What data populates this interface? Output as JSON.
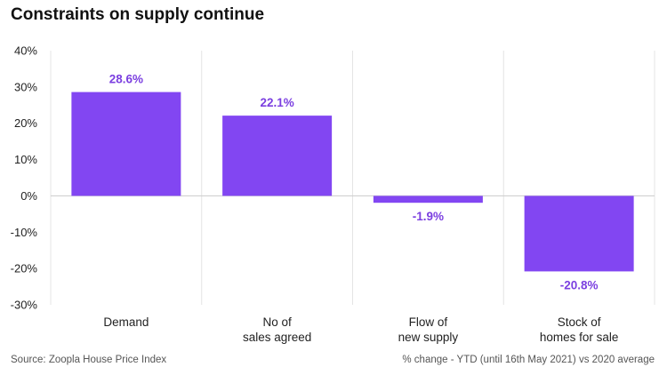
{
  "title": "Constraints on supply continue",
  "source": "Source: Zoopla House Price Index",
  "note": "% change - YTD (until 16th May 2021) vs 2020 average",
  "colors": {
    "bar": "#8246f2",
    "label": "#7b3fe0",
    "grid": "#e4e4e4",
    "zero": "#cccccc"
  },
  "chart_data": {
    "type": "bar",
    "title": "Constraints on supply continue",
    "categories": [
      [
        "Demand"
      ],
      [
        "No of",
        "sales agreed"
      ],
      [
        "Flow of",
        "new supply"
      ],
      [
        "Stock of",
        "homes for sale"
      ]
    ],
    "values": [
      28.6,
      22.1,
      -1.9,
      -20.8
    ],
    "data_labels": [
      "28.6%",
      "22.1%",
      "-1.9%",
      "-20.8%"
    ],
    "yticks": [
      40,
      30,
      20,
      10,
      0,
      -10,
      -20,
      -30
    ],
    "ytick_labels": [
      "40%",
      "30%",
      "20%",
      "10%",
      "0%",
      "-10%",
      "-20%",
      "-30%"
    ],
    "ylim": [
      -30,
      40
    ],
    "grid": false,
    "legend": "none"
  }
}
